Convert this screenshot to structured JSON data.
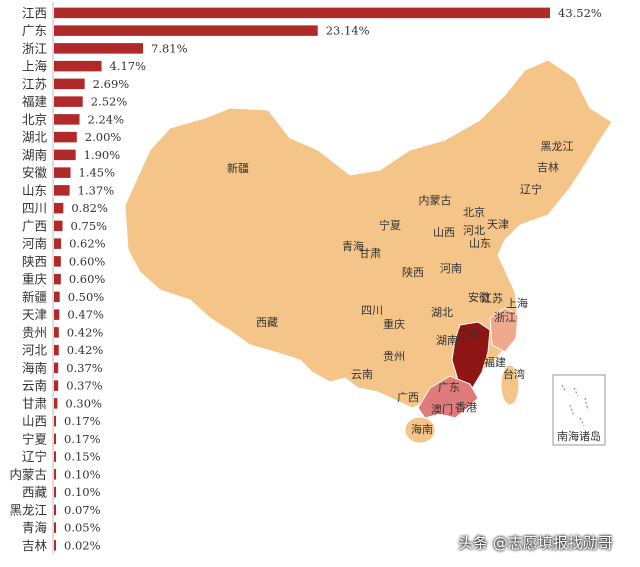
{
  "colors": {
    "bar": "#b02a2a",
    "axis": "#bfbfbf",
    "map_base": "#f5c488",
    "map_border": "#ffffff",
    "tier_high": "#8f1414",
    "tier_mid": "#e07b7b",
    "tier_low": "#f1a88c",
    "label_text": "#333333"
  },
  "chart_data": {
    "type": "bar",
    "orientation": "horizontal",
    "categories": [
      "江西",
      "广东",
      "浙江",
      "上海",
      "江苏",
      "福建",
      "北京",
      "湖北",
      "湖南",
      "安徽",
      "山东",
      "四川",
      "广西",
      "河南",
      "陕西",
      "重庆",
      "新疆",
      "天津",
      "贵州",
      "河北",
      "海南",
      "云南",
      "甘肃",
      "山西",
      "宁夏",
      "辽宁",
      "内蒙古",
      "西藏",
      "黑龙江",
      "青海",
      "吉林"
    ],
    "values": [
      43.52,
      23.14,
      7.81,
      4.17,
      2.69,
      2.52,
      2.24,
      2.0,
      1.9,
      1.45,
      1.37,
      0.82,
      0.75,
      0.62,
      0.6,
      0.6,
      0.5,
      0.47,
      0.42,
      0.42,
      0.37,
      0.37,
      0.3,
      0.17,
      0.17,
      0.15,
      0.1,
      0.1,
      0.07,
      0.05,
      0.02
    ],
    "data_labels": [
      "43.52%",
      "23.14%",
      "7.81%",
      "4.17%",
      "2.69%",
      "2.52%",
      "2.24%",
      "2.00%",
      "1.90%",
      "1.45%",
      "1.37%",
      "0.82%",
      "0.75%",
      "0.62%",
      "0.60%",
      "0.60%",
      "0.50%",
      "0.47%",
      "0.42%",
      "0.42%",
      "0.37%",
      "0.37%",
      "0.30%",
      "0.17%",
      "0.17%",
      "0.15%",
      "0.10%",
      "0.10%",
      "0.07%",
      "0.05%",
      "0.02%"
    ],
    "unit": "%",
    "xlim": [
      0,
      45
    ]
  },
  "map": {
    "provinces": {
      "xinjiang": "新疆",
      "xizang": "西藏",
      "qinghai": "青海",
      "gansu": "甘肃",
      "neimenggu": "内蒙古",
      "ningxia": "宁夏",
      "shaanxi": "陕西",
      "sichuan": "四川",
      "chongqing": "重庆",
      "yunnan": "云南",
      "guizhou": "贵州",
      "guangxi": "广西",
      "guangdong": "广东",
      "hainan": "海南",
      "hunan": "湖南",
      "hubei": "湖北",
      "henan": "河南",
      "shanxi": "山西",
      "hebei": "河北",
      "beijing": "北京",
      "tianjin": "天津",
      "shandong": "山东",
      "jiangsu": "江苏",
      "anhui": "安徽",
      "shanghai": "上海",
      "zhejiang": "浙江",
      "jiangxi": "江西",
      "fujian": "福建",
      "taiwan": "台湾",
      "liaoning": "辽宁",
      "jilin": "吉林",
      "heilongjiang": "黑龙江",
      "xianggang": "香港",
      "aomen": "澳门"
    },
    "inset_label": "南海诸岛"
  },
  "watermark": "头条 @志愿填报找勋哥"
}
